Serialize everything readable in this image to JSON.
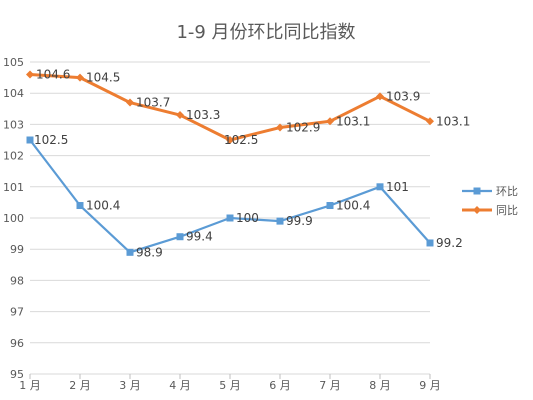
{
  "chart_data": {
    "type": "line",
    "title": "1-9 月份环比同比指数",
    "xlabel": "",
    "ylabel": "",
    "categories": [
      "1 月",
      "2 月",
      "3 月",
      "4 月",
      "5 月",
      "6 月",
      "7 月",
      "8 月",
      "9 月"
    ],
    "ylim": [
      95,
      105
    ],
    "yticks": [
      95,
      96,
      97,
      98,
      99,
      100,
      101,
      102,
      103,
      104,
      105
    ],
    "grid": true,
    "legend": "right",
    "series": [
      {
        "name": "环比",
        "color": "#5b9bd5",
        "marker": "square",
        "values": [
          102.5,
          100.4,
          98.9,
          99.4,
          100,
          99.9,
          100.4,
          101,
          99.2
        ]
      },
      {
        "name": "同比",
        "color": "#ed7d31",
        "marker": "diamond",
        "values": [
          104.6,
          104.5,
          103.7,
          103.3,
          102.5,
          102.9,
          103.1,
          103.9,
          103.1
        ]
      }
    ]
  }
}
